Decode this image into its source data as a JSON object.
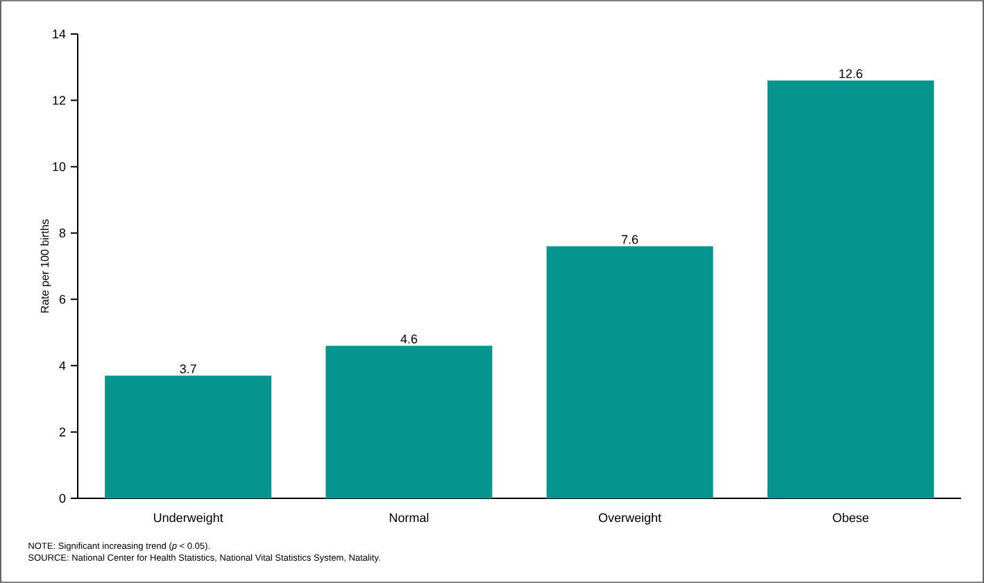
{
  "chart_data": {
    "type": "bar",
    "ylabel": "Rate per 100 births",
    "categories": [
      "Underweight",
      "Normal",
      "Overweight",
      "Obese"
    ],
    "values": [
      3.7,
      4.6,
      7.6,
      12.6
    ],
    "color": "#06948f",
    "ylim": [
      0,
      14
    ],
    "yticks": [
      0,
      2,
      4,
      6,
      8,
      10,
      12,
      14
    ],
    "data_labels": true,
    "annotations": [
      "NOTE: Significant increasing trend (*p* < 0.05).",
      "SOURCE: National Center for Health Statistics, National Vital Statistics System, Natality."
    ]
  }
}
